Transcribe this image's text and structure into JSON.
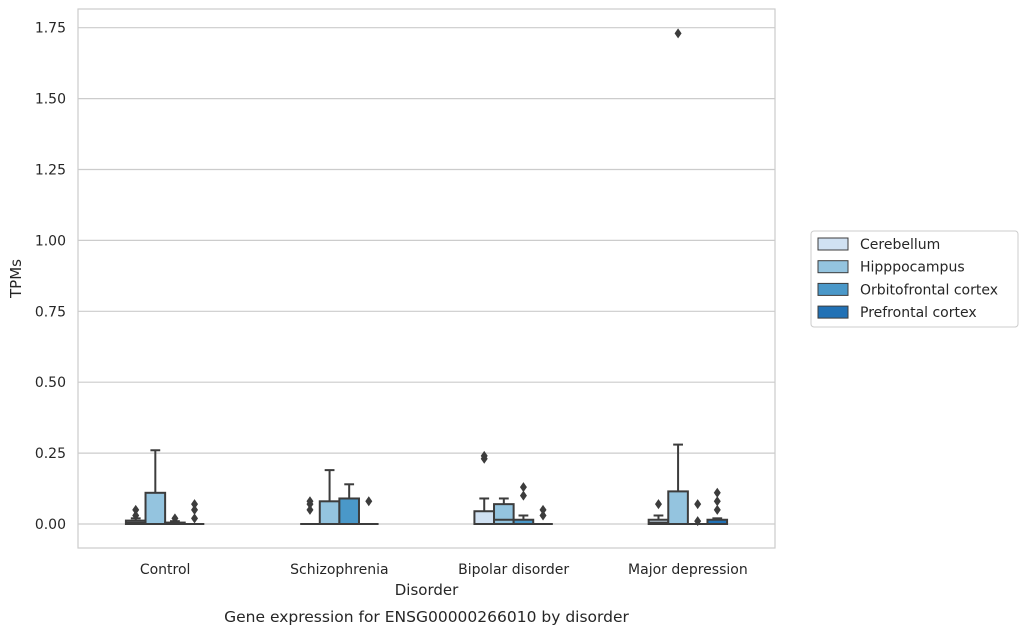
{
  "chart_data": {
    "type": "box",
    "caption": "Gene expression for ENSG00000266010 by disorder",
    "xlabel": "Disorder",
    "ylabel": "TPMs",
    "ylim": [
      -0.085,
      1.82
    ],
    "yticks": [
      "0.00",
      "0.25",
      "0.50",
      "0.75",
      "1.00",
      "1.25",
      "1.50",
      "1.75"
    ],
    "grid": "horizontal",
    "legend_position": "right",
    "categories": [
      "Control",
      "Schizophrenia",
      "Bipolar disorder",
      "Major depression"
    ],
    "series": [
      {
        "name": "Cerebellum",
        "color": "#d0e1f2",
        "boxes": [
          {
            "q1": 0.0,
            "median": 0.005,
            "q3": 0.012,
            "whisker_low": 0.0,
            "whisker_high": 0.02,
            "outliers": [
              0.03,
              0.05
            ]
          },
          {
            "q1": 0.0,
            "median": 0.0,
            "q3": 0.0,
            "whisker_low": 0.0,
            "whisker_high": 0.0,
            "outliers": [
              0.05,
              0.07,
              0.08
            ]
          },
          {
            "q1": 0.0,
            "median": 0.0,
            "q3": 0.045,
            "whisker_low": 0.0,
            "whisker_high": 0.09,
            "outliers": [
              0.23,
              0.24
            ]
          },
          {
            "q1": 0.0,
            "median": 0.005,
            "q3": 0.015,
            "whisker_low": 0.0,
            "whisker_high": 0.03,
            "outliers": [
              0.07
            ]
          }
        ]
      },
      {
        "name": "Hipppocampus",
        "color": "#94c4df",
        "boxes": [
          {
            "q1": 0.0,
            "median": 0.0,
            "q3": 0.11,
            "whisker_low": 0.0,
            "whisker_high": 0.26,
            "outliers": []
          },
          {
            "q1": 0.0,
            "median": 0.0,
            "q3": 0.08,
            "whisker_low": 0.0,
            "whisker_high": 0.19,
            "outliers": []
          },
          {
            "q1": 0.0,
            "median": 0.015,
            "q3": 0.07,
            "whisker_low": 0.0,
            "whisker_high": 0.09,
            "outliers": []
          },
          {
            "q1": 0.0,
            "median": 0.0,
            "q3": 0.115,
            "whisker_low": 0.0,
            "whisker_high": 0.28,
            "outliers": [
              1.73
            ]
          }
        ]
      },
      {
        "name": "Orbitofrontal cortex",
        "color": "#4a98c9",
        "boxes": [
          {
            "q1": 0.0,
            "median": 0.0,
            "q3": 0.005,
            "whisker_low": 0.0,
            "whisker_high": 0.01,
            "outliers": [
              0.02
            ]
          },
          {
            "q1": 0.0,
            "median": 0.0,
            "q3": 0.09,
            "whisker_low": 0.0,
            "whisker_high": 0.14,
            "outliers": []
          },
          {
            "q1": 0.0,
            "median": 0.0,
            "q3": 0.015,
            "whisker_low": 0.0,
            "whisker_high": 0.03,
            "outliers": [
              0.1,
              0.13
            ]
          },
          {
            "q1": 0.0,
            "median": 0.0,
            "q3": 0.0,
            "whisker_low": 0.0,
            "whisker_high": 0.0,
            "outliers": [
              0.01,
              0.07
            ]
          }
        ]
      },
      {
        "name": "Prefrontal cortex",
        "color": "#2171b5",
        "boxes": [
          {
            "q1": 0.0,
            "median": 0.0,
            "q3": 0.0,
            "whisker_low": 0.0,
            "whisker_high": 0.0,
            "outliers": [
              0.02,
              0.05,
              0.07
            ]
          },
          {
            "q1": 0.0,
            "median": 0.0,
            "q3": 0.0,
            "whisker_low": 0.0,
            "whisker_high": 0.0,
            "outliers": [
              0.08
            ]
          },
          {
            "q1": 0.0,
            "median": 0.0,
            "q3": 0.0,
            "whisker_low": 0.0,
            "whisker_high": 0.0,
            "outliers": [
              0.03,
              0.05
            ]
          },
          {
            "q1": 0.0,
            "median": 0.0,
            "q3": 0.015,
            "whisker_low": 0.0,
            "whisker_high": 0.02,
            "outliers": [
              0.05,
              0.08,
              0.11
            ]
          }
        ]
      }
    ]
  }
}
